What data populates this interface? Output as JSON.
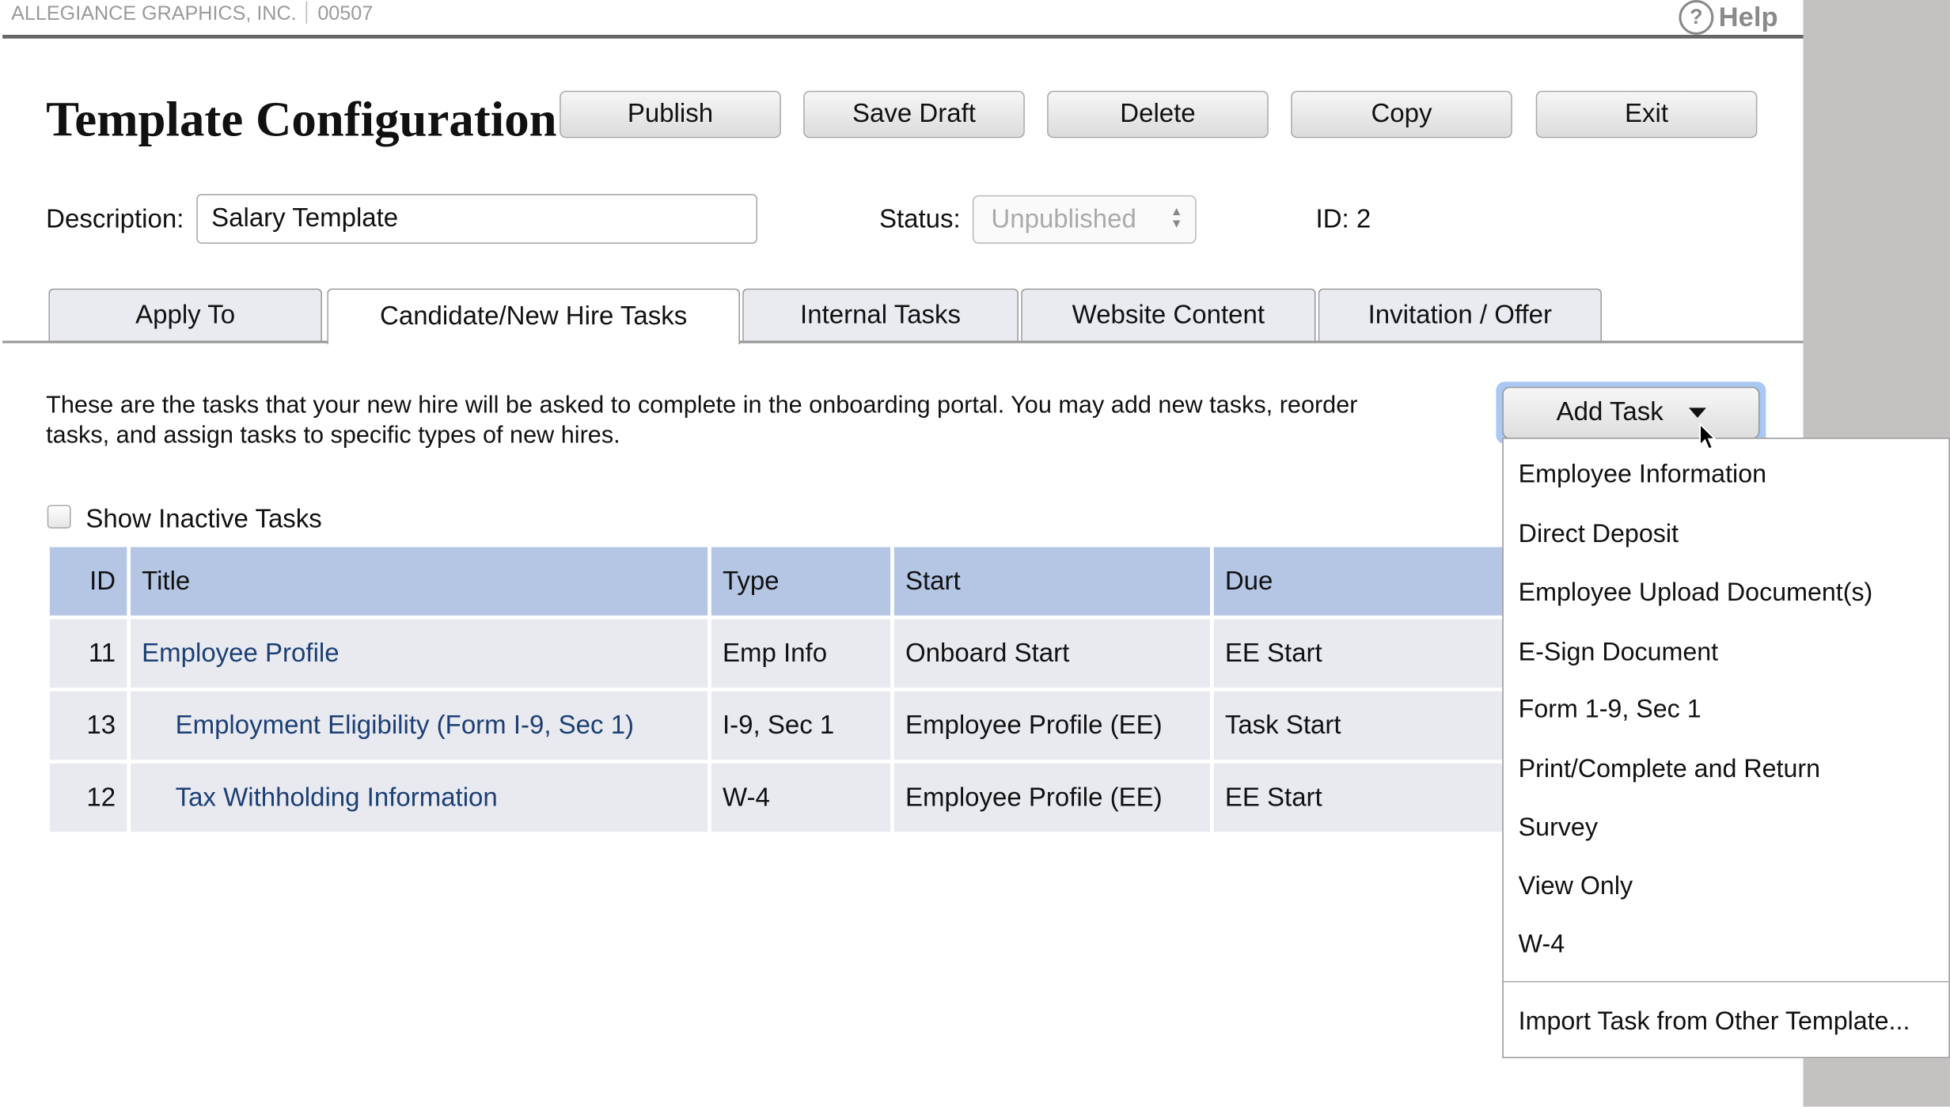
{
  "header": {
    "company": "ALLEGIANCE GRAPHICS, INC.",
    "code": "00507",
    "help_label": "Help",
    "help_icon": "question-circle-icon"
  },
  "page": {
    "title": "Template Configuration"
  },
  "toolbar": {
    "publish": "Publish",
    "save_draft": "Save Draft",
    "delete": "Delete",
    "copy": "Copy",
    "exit": "Exit"
  },
  "form": {
    "description_label": "Description:",
    "description_value": "Salary Template",
    "status_label": "Status:",
    "status_value": "Unpublished",
    "id_label": "ID: 2"
  },
  "tabs": [
    {
      "label": "Apply To"
    },
    {
      "label": "Candidate/New Hire Tasks",
      "active": true
    },
    {
      "label": "Internal Tasks"
    },
    {
      "label": "Website Content"
    },
    {
      "label": "Invitation / Offer"
    }
  ],
  "intro": "These are the tasks that your new hire will be asked to complete in the onboarding portal. You may add new tasks, reorder tasks, and assign tasks to specific types of new hires.",
  "show_inactive": {
    "label": "Show Inactive Tasks",
    "checked": false
  },
  "table": {
    "headers": [
      "ID",
      "Title",
      "Type",
      "Start",
      "Due"
    ],
    "rows": [
      {
        "id": "11",
        "title": "Employee Profile",
        "type": "Emp Info",
        "start": "Onboard Start",
        "due": "EE Start"
      },
      {
        "id": "13",
        "title": "Employment Eligibility (Form I-9, Sec 1)",
        "type": "I-9, Sec 1",
        "start": "Employee Profile (EE)",
        "due": "Task Start"
      },
      {
        "id": "12",
        "title": "Tax Withholding Information",
        "type": "W-4",
        "start": "Employee Profile (EE)",
        "due": "EE Start"
      }
    ]
  },
  "add_task": {
    "label": "Add Task",
    "menu": [
      "Employee Information",
      "Direct Deposit",
      "Employee Upload Document(s)",
      "E-Sign Document",
      "Form 1-9, Sec 1",
      "Print/Complete and Return",
      "Survey",
      "View Only",
      "W-4"
    ],
    "import_label": "Import Task from Other Template..."
  },
  "colors": {
    "header_row": "#b4c6e4",
    "row": "#e8eaf0",
    "link": "#1c3f74",
    "focus_ring": "#a9c8f3",
    "side_panel": "#c4c1c1"
  }
}
